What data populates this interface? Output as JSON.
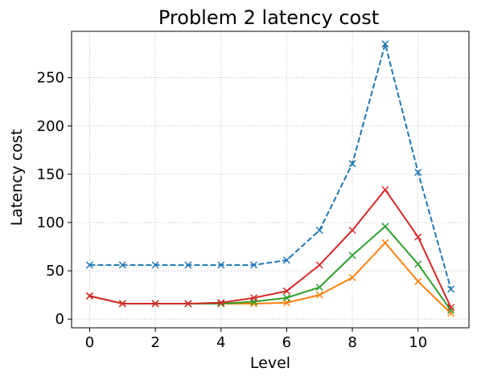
{
  "chart_data": {
    "type": "line",
    "title": "Problem 2 latency cost",
    "xlabel": "Level",
    "ylabel": "Latency cost",
    "xlim": [
      -0.55,
      11.55
    ],
    "ylim": [
      -9,
      298
    ],
    "xticks": [
      0,
      2,
      4,
      6,
      8,
      10
    ],
    "yticks": [
      0,
      50,
      100,
      150,
      200,
      250
    ],
    "grid": true,
    "grid_style": "dotted",
    "legend": "none",
    "marker": "x",
    "x": [
      0,
      1,
      2,
      3,
      4,
      5,
      6,
      7,
      8,
      9,
      10,
      11
    ],
    "series": [
      {
        "color": "#1f77b4",
        "dash": "dashed",
        "values": [
          56,
          56,
          56,
          56,
          56,
          56,
          61,
          92,
          161,
          285,
          152,
          31
        ]
      },
      {
        "color": "#ff7f0e",
        "dash": "solid",
        "values": [
          24,
          16,
          16,
          16,
          16,
          16,
          17,
          25,
          43,
          79,
          39,
          6
        ]
      },
      {
        "color": "#2ca02c",
        "dash": "solid",
        "values": [
          24,
          16,
          16,
          16,
          16,
          18,
          22,
          33,
          66,
          96,
          57,
          9
        ]
      },
      {
        "color": "#d62728",
        "dash": "solid",
        "values": [
          24,
          16,
          16,
          16,
          17,
          22,
          29,
          56,
          92,
          134,
          85,
          12
        ]
      }
    ]
  }
}
